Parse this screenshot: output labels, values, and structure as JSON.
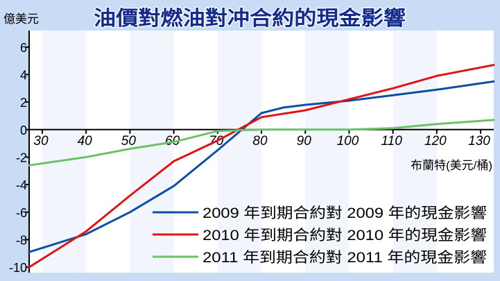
{
  "page": {
    "title": "油價對燃油對冲合約的現金影響",
    "y_unit": "億美元",
    "x_unit": "布蘭特(美元/桶)"
  },
  "colors": {
    "background": "#c9dcf5",
    "panel": "#ffffff",
    "band": "#f2f6fc",
    "title": "#132b8c",
    "axis": "#000000",
    "series_2009": "#0a4ea6",
    "series_2010": "#e11414",
    "series_2011": "#6cc167"
  },
  "chart_data": {
    "type": "line",
    "title": "油價對燃油對冲合約的現金影響",
    "ylabel": "億美元",
    "xlabel": "布蘭特(美元/桶)",
    "xlim": [
      27,
      133
    ],
    "ylim": [
      -10.4,
      7.2
    ],
    "x_ticks": [
      30,
      40,
      50,
      60,
      70,
      80,
      90,
      100,
      110,
      120,
      130
    ],
    "x_tick_labels": [
      "30",
      "40",
      "50",
      "60",
      "70",
      "80",
      "90",
      "100",
      "110",
      "120",
      "130"
    ],
    "y_ticks": [
      6,
      4,
      2,
      0,
      -2,
      -4,
      -6,
      -8,
      -10
    ],
    "y_tick_labels": [
      "6",
      "4",
      "2",
      "0",
      "-2",
      "-4",
      "-6",
      "-8",
      "-10"
    ],
    "grid": false,
    "shaded_bands": [
      [
        30,
        40
      ],
      [
        50,
        60
      ],
      [
        70,
        80
      ],
      [
        90,
        100
      ],
      [
        110,
        120
      ]
    ],
    "legend_position": "bottom-right",
    "series": [
      {
        "name": "2009 年到期合約對 2009 年的現金影響",
        "color": "#0a4ea6",
        "x": [
          27,
          40,
          50,
          60,
          70,
          80,
          85,
          90,
          100,
          110,
          120,
          133
        ],
        "y": [
          -8.9,
          -7.6,
          -6.0,
          -4.1,
          -1.5,
          1.2,
          1.6,
          1.8,
          2.1,
          2.5,
          2.9,
          3.5
        ]
      },
      {
        "name": "2010 年到期合約對 2010 年的現金影響",
        "color": "#e11414",
        "x": [
          27,
          40,
          50,
          60,
          70,
          80,
          90,
          100,
          110,
          120,
          133
        ],
        "y": [
          -10.0,
          -7.4,
          -4.8,
          -2.3,
          -0.8,
          0.9,
          1.4,
          2.2,
          3.0,
          3.9,
          4.7
        ]
      },
      {
        "name": "2011 年到期合約對 2011 年的現金影響",
        "color": "#6cc167",
        "x": [
          27,
          40,
          50,
          60,
          70,
          80,
          90,
          100,
          110,
          120,
          133
        ],
        "y": [
          -2.6,
          -2.0,
          -1.4,
          -0.9,
          -0.1,
          0.0,
          0.0,
          0.0,
          0.1,
          0.4,
          0.7
        ]
      }
    ]
  }
}
